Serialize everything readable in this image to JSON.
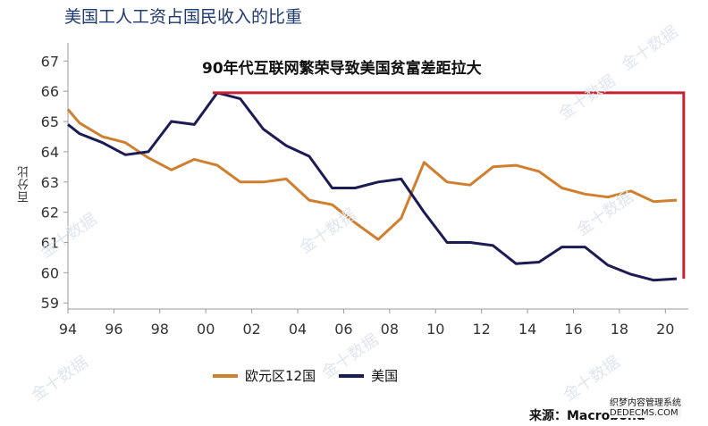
{
  "watermarks": [
    "金十数据",
    "金十数据",
    "金十数据",
    "金十数据",
    "金十数据",
    "金十数据",
    "金十数据",
    "金十数据"
  ],
  "corner_watermark": {
    "line1": "织梦内容管理系统",
    "line2": "DEDECMS.COM"
  },
  "chart_data": {
    "type": "line",
    "title": "美国工人工资占国民收入的比重",
    "annotation": "90年代互联网繁荣导致美国贫富差距拉大",
    "ylabel": "百分比",
    "source": "来源：Macrobond",
    "ylim": [
      58.8,
      67.6
    ],
    "yticks": [
      59,
      60,
      61,
      62,
      63,
      64,
      65,
      66,
      67
    ],
    "xlim": [
      1994,
      2021
    ],
    "xticks": [
      94,
      96,
      98,
      0,
      2,
      4,
      6,
      8,
      10,
      12,
      14,
      16,
      18,
      20
    ],
    "xtick_labels": [
      "94",
      "96",
      "98",
      "00",
      "02",
      "04",
      "06",
      "08",
      "10",
      "12",
      "14",
      "16",
      "18",
      "20"
    ],
    "grid": false,
    "legend_position": "bottom",
    "gap_bracket": {
      "x_start": 2000.3,
      "x_end": 2020.8,
      "y_top": 65.95,
      "y_bottom": 59.8,
      "color": "#c8202e"
    },
    "series": [
      {
        "name": "欧元区12国",
        "color": "#d07f2e",
        "x": [
          1994,
          1994.5,
          1995.5,
          1996.5,
          1997.5,
          1998.5,
          1999.5,
          2000.5,
          2001.5,
          2002.5,
          2003.5,
          2004.5,
          2005.5,
          2006.5,
          2007.5,
          2008.5,
          2009.5,
          2010.5,
          2011.5,
          2012.5,
          2013.5,
          2014.5,
          2015.5,
          2016.5,
          2017.5,
          2018.5,
          2019.5,
          2020.5
        ],
        "values": [
          65.4,
          64.95,
          64.5,
          64.3,
          63.8,
          63.4,
          63.75,
          63.55,
          63.0,
          63.0,
          63.1,
          62.4,
          62.25,
          61.65,
          61.1,
          61.8,
          63.65,
          63.0,
          62.9,
          63.5,
          63.55,
          63.35,
          62.8,
          62.6,
          62.5,
          62.7,
          62.35,
          62.4
        ]
      },
      {
        "name": "美国",
        "color": "#1b1b55",
        "x": [
          1994,
          1994.5,
          1995.5,
          1996.5,
          1997.5,
          1998.5,
          1999.5,
          2000.5,
          2001.5,
          2002.5,
          2003.5,
          2004.5,
          2005.5,
          2006.5,
          2007.5,
          2008.5,
          2009.5,
          2010.5,
          2011.5,
          2012.5,
          2013.5,
          2014.5,
          2015.5,
          2016.5,
          2017.5,
          2018.5,
          2019.5,
          2020.5
        ],
        "values": [
          64.9,
          64.6,
          64.3,
          63.9,
          64.0,
          65.0,
          64.9,
          65.95,
          65.75,
          64.75,
          64.2,
          63.85,
          62.8,
          62.8,
          63.0,
          63.1,
          62.0,
          61.0,
          61.0,
          60.9,
          60.3,
          60.35,
          60.85,
          60.85,
          60.25,
          59.95,
          59.75,
          59.8
        ]
      }
    ]
  }
}
